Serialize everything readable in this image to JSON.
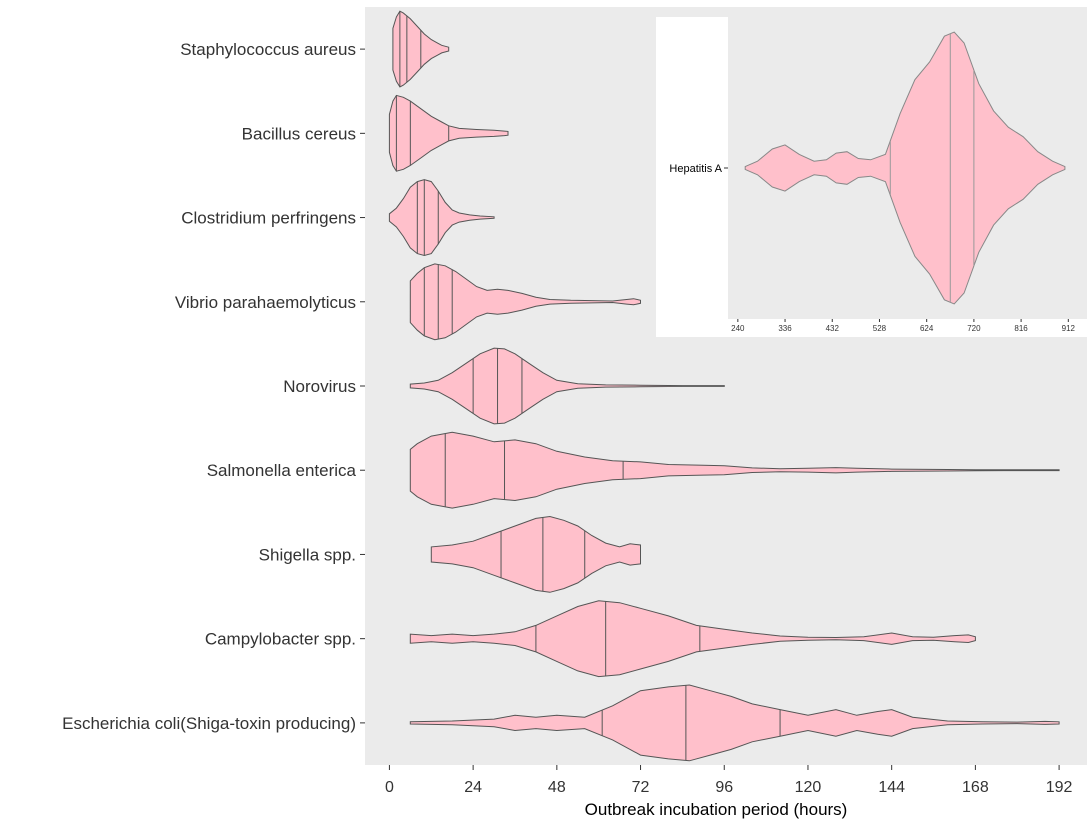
{
  "colors": {
    "panel": "#ebebeb",
    "violin_fill": "#ffc0cb",
    "violin_stroke": "#555555",
    "text": "#333333"
  },
  "chart_data": [
    {
      "type": "violin",
      "orientation": "horizontal",
      "xlabel": "Outbreak incubation period (hours)",
      "ylabel": "",
      "xlim": [
        -7,
        200
      ],
      "xticks": [
        0,
        24,
        48,
        72,
        96,
        120,
        144,
        168,
        192
      ],
      "grid": false,
      "legend": "none",
      "fill_color": "#ffc0cb",
      "categories": [
        "Staphylococcus aureus",
        "Bacillus cereus",
        "Clostridium perfringens",
        "Vibrio parahaemolyticus",
        "Norovirus",
        "Salmonella enterica",
        "Shigella spp.",
        "Campylobacter spp.",
        "Escherichia coli(Shiga-toxin producing)"
      ],
      "series": [
        {
          "category": "Staphylococcus aureus",
          "min": 1,
          "max": 17,
          "quartiles": [
            3,
            5,
            9
          ],
          "density": [
            [
              1,
              0.55
            ],
            [
              2,
              0.85
            ],
            [
              3,
              1.0
            ],
            [
              4,
              0.95
            ],
            [
              6,
              0.8
            ],
            [
              8,
              0.6
            ],
            [
              10,
              0.4
            ],
            [
              12,
              0.25
            ],
            [
              14,
              0.15
            ],
            [
              15,
              0.1
            ],
            [
              17,
              0.05
            ]
          ]
        },
        {
          "category": "Bacillus cereus",
          "min": 0,
          "max": 34,
          "quartiles": [
            2,
            6,
            17
          ],
          "density": [
            [
              0,
              0.5
            ],
            [
              1,
              0.85
            ],
            [
              2,
              1.0
            ],
            [
              4,
              0.95
            ],
            [
              6,
              0.85
            ],
            [
              9,
              0.65
            ],
            [
              12,
              0.45
            ],
            [
              15,
              0.3
            ],
            [
              17,
              0.2
            ],
            [
              20,
              0.13
            ],
            [
              25,
              0.1
            ],
            [
              30,
              0.08
            ],
            [
              33,
              0.06
            ],
            [
              34,
              0.05
            ]
          ]
        },
        {
          "category": "Clostridium perfringens",
          "min": 0,
          "max": 30,
          "quartiles": [
            8,
            10,
            14
          ],
          "density": [
            [
              0,
              0.1
            ],
            [
              2,
              0.25
            ],
            [
              4,
              0.5
            ],
            [
              6,
              0.8
            ],
            [
              8,
              0.95
            ],
            [
              10,
              1.0
            ],
            [
              12,
              0.95
            ],
            [
              14,
              0.7
            ],
            [
              16,
              0.4
            ],
            [
              18,
              0.2
            ],
            [
              20,
              0.12
            ],
            [
              23,
              0.07
            ],
            [
              26,
              0.04
            ],
            [
              30,
              0.02
            ]
          ]
        },
        {
          "category": "Vibrio parahaemolyticus",
          "min": 6,
          "max": 72,
          "quartiles": [
            10,
            14,
            18
          ],
          "density": [
            [
              6,
              0.55
            ],
            [
              8,
              0.75
            ],
            [
              10,
              0.9
            ],
            [
              13,
              1.0
            ],
            [
              16,
              0.95
            ],
            [
              19,
              0.8
            ],
            [
              22,
              0.6
            ],
            [
              25,
              0.4
            ],
            [
              28,
              0.3
            ],
            [
              31,
              0.33
            ],
            [
              34,
              0.3
            ],
            [
              38,
              0.22
            ],
            [
              42,
              0.12
            ],
            [
              46,
              0.06
            ],
            [
              52,
              0.04
            ],
            [
              58,
              0.03
            ],
            [
              64,
              0.02
            ],
            [
              68,
              0.06
            ],
            [
              70,
              0.08
            ],
            [
              72,
              0.04
            ]
          ]
        },
        {
          "category": "Norovirus",
          "min": 6,
          "max": 96,
          "quartiles": [
            24,
            31,
            38
          ],
          "density": [
            [
              6,
              0.05
            ],
            [
              10,
              0.08
            ],
            [
              14,
              0.15
            ],
            [
              18,
              0.35
            ],
            [
              22,
              0.6
            ],
            [
              26,
              0.85
            ],
            [
              30,
              1.0
            ],
            [
              33,
              0.98
            ],
            [
              36,
              0.85
            ],
            [
              40,
              0.6
            ],
            [
              44,
              0.35
            ],
            [
              48,
              0.15
            ],
            [
              54,
              0.06
            ],
            [
              62,
              0.03
            ],
            [
              72,
              0.02
            ],
            [
              84,
              0.01
            ],
            [
              96,
              0.01
            ]
          ]
        },
        {
          "category": "Salmonella enterica",
          "min": 6,
          "max": 192,
          "quartiles": [
            16,
            33,
            67
          ],
          "density": [
            [
              6,
              0.55
            ],
            [
              8,
              0.7
            ],
            [
              12,
              0.9
            ],
            [
              18,
              1.0
            ],
            [
              24,
              0.9
            ],
            [
              30,
              0.75
            ],
            [
              36,
              0.8
            ],
            [
              42,
              0.7
            ],
            [
              48,
              0.5
            ],
            [
              56,
              0.35
            ],
            [
              64,
              0.25
            ],
            [
              72,
              0.22
            ],
            [
              80,
              0.15
            ],
            [
              90,
              0.13
            ],
            [
              96,
              0.12
            ],
            [
              104,
              0.06
            ],
            [
              112,
              0.04
            ],
            [
              120,
              0.05
            ],
            [
              128,
              0.07
            ],
            [
              134,
              0.05
            ],
            [
              144,
              0.03
            ],
            [
              160,
              0.02
            ],
            [
              168,
              0.015
            ],
            [
              176,
              0.01
            ],
            [
              192,
              0.01
            ]
          ]
        },
        {
          "category": "Shigella spp.",
          "min": 12,
          "max": 72,
          "quartiles": [
            32,
            44,
            56
          ],
          "density": [
            [
              12,
              0.2
            ],
            [
              18,
              0.25
            ],
            [
              24,
              0.35
            ],
            [
              30,
              0.55
            ],
            [
              36,
              0.75
            ],
            [
              42,
              0.95
            ],
            [
              46,
              1.0
            ],
            [
              50,
              0.9
            ],
            [
              54,
              0.75
            ],
            [
              58,
              0.5
            ],
            [
              62,
              0.3
            ],
            [
              66,
              0.2
            ],
            [
              69,
              0.28
            ],
            [
              72,
              0.25
            ]
          ]
        },
        {
          "category": "Campylobacter spp.",
          "min": 6,
          "max": 168,
          "quartiles": [
            42,
            62,
            89
          ],
          "density": [
            [
              6,
              0.12
            ],
            [
              12,
              0.08
            ],
            [
              18,
              0.12
            ],
            [
              24,
              0.08
            ],
            [
              30,
              0.12
            ],
            [
              36,
              0.18
            ],
            [
              42,
              0.35
            ],
            [
              48,
              0.6
            ],
            [
              54,
              0.85
            ],
            [
              60,
              1.0
            ],
            [
              66,
              0.95
            ],
            [
              72,
              0.8
            ],
            [
              80,
              0.6
            ],
            [
              88,
              0.35
            ],
            [
              96,
              0.25
            ],
            [
              104,
              0.15
            ],
            [
              112,
              0.07
            ],
            [
              120,
              0.04
            ],
            [
              128,
              0.03
            ],
            [
              136,
              0.05
            ],
            [
              144,
              0.15
            ],
            [
              150,
              0.05
            ],
            [
              156,
              0.04
            ],
            [
              162,
              0.08
            ],
            [
              166,
              0.1
            ],
            [
              168,
              0.05
            ]
          ]
        },
        {
          "category": "Escherichia coli(Shiga-toxin producing)",
          "min": 6,
          "max": 192,
          "quartiles": [
            61,
            85,
            112
          ],
          "density": [
            [
              6,
              0.03
            ],
            [
              18,
              0.05
            ],
            [
              30,
              0.1
            ],
            [
              36,
              0.2
            ],
            [
              42,
              0.15
            ],
            [
              48,
              0.2
            ],
            [
              56,
              0.15
            ],
            [
              64,
              0.45
            ],
            [
              72,
              0.85
            ],
            [
              80,
              0.95
            ],
            [
              86,
              1.0
            ],
            [
              92,
              0.85
            ],
            [
              98,
              0.7
            ],
            [
              104,
              0.5
            ],
            [
              112,
              0.35
            ],
            [
              120,
              0.2
            ],
            [
              128,
              0.35
            ],
            [
              134,
              0.2
            ],
            [
              140,
              0.3
            ],
            [
              144,
              0.35
            ],
            [
              150,
              0.15
            ],
            [
              160,
              0.05
            ],
            [
              170,
              0.03
            ],
            [
              180,
              0.02
            ],
            [
              188,
              0.04
            ],
            [
              192,
              0.03
            ]
          ]
        }
      ]
    },
    {
      "type": "violin",
      "orientation": "horizontal",
      "inset": true,
      "xlabel": "",
      "xlim": [
        220,
        950
      ],
      "xticks": [
        240,
        336,
        432,
        528,
        624,
        720,
        816,
        912
      ],
      "categories": [
        "Hepatitis A"
      ],
      "series": [
        {
          "category": "Hepatitis A",
          "min": 255,
          "max": 905,
          "quartiles": [
            550,
            672,
            720
          ],
          "density": [
            [
              255,
              0.01
            ],
            [
              280,
              0.05
            ],
            [
              310,
              0.14
            ],
            [
              336,
              0.17
            ],
            [
              365,
              0.1
            ],
            [
              395,
              0.05
            ],
            [
              420,
              0.06
            ],
            [
              440,
              0.11
            ],
            [
              462,
              0.12
            ],
            [
              485,
              0.07
            ],
            [
              510,
              0.06
            ],
            [
              540,
              0.1
            ],
            [
              570,
              0.4
            ],
            [
              600,
              0.65
            ],
            [
              630,
              0.78
            ],
            [
              660,
              0.97
            ],
            [
              680,
              1.0
            ],
            [
              700,
              0.92
            ],
            [
              730,
              0.62
            ],
            [
              760,
              0.42
            ],
            [
              790,
              0.3
            ],
            [
              820,
              0.23
            ],
            [
              850,
              0.12
            ],
            [
              880,
              0.05
            ],
            [
              905,
              0.01
            ]
          ]
        }
      ]
    }
  ]
}
